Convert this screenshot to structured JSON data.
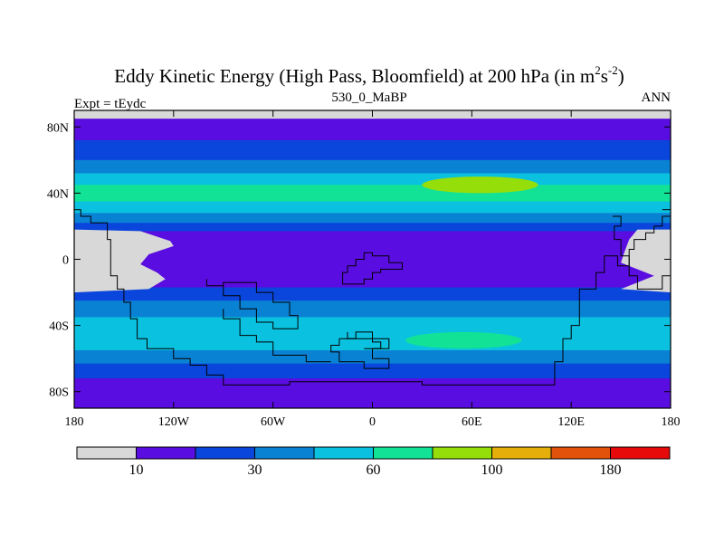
{
  "chart_data": {
    "type": "contour_map",
    "title": "Eddy Kinetic Energy (High Pass, Bloomfield) at 200 hPa (in m",
    "title_unit_sup1": "2",
    "title_unit_mid": "s",
    "title_unit_sup2": "-2",
    "title_close": ")",
    "subtitle": "530_0_MaBP",
    "left_label": "Expt = tEydc",
    "right_label": "ANN",
    "lon_range": [
      -180,
      180
    ],
    "lat_range": [
      -90,
      90
    ],
    "x_ticks": [
      {
        "value": -180,
        "label": "180"
      },
      {
        "value": -120,
        "label": "120W"
      },
      {
        "value": -60,
        "label": "60W"
      },
      {
        "value": 0,
        "label": "0"
      },
      {
        "value": 60,
        "label": "60E"
      },
      {
        "value": 120,
        "label": "120E"
      },
      {
        "value": 180,
        "label": "180"
      }
    ],
    "y_ticks": [
      {
        "value": 80,
        "label": "80N"
      },
      {
        "value": 40,
        "label": "40N"
      },
      {
        "value": 0,
        "label": "0"
      },
      {
        "value": -40,
        "label": "40S"
      },
      {
        "value": -80,
        "label": "80S"
      }
    ],
    "colorbar": {
      "colors": [
        "#d8d8d8",
        "#5a0de0",
        "#0a46dc",
        "#0a82d4",
        "#0ac2e0",
        "#12e296",
        "#96de0a",
        "#e6ae0a",
        "#e2520a",
        "#e60a0a"
      ],
      "labels": [
        {
          "boundary": 1,
          "label": "10"
        },
        {
          "boundary": 3,
          "label": "30"
        },
        {
          "boundary": 5,
          "label": "60"
        },
        {
          "boundary": 7,
          "label": "100"
        },
        {
          "boundary": 9,
          "label": "180"
        }
      ]
    },
    "field_bands": [
      {
        "lat_from": 90,
        "lat_to": 85,
        "color": "#d8d8d8"
      },
      {
        "lat_from": 85,
        "lat_to": 72,
        "color": "#5a0de0"
      },
      {
        "lat_from": 72,
        "lat_to": 60,
        "color": "#0a46dc"
      },
      {
        "lat_from": 60,
        "lat_to": 52,
        "color": "#0a82d4"
      },
      {
        "lat_from": 52,
        "lat_to": 45,
        "color": "#0ac2e0"
      },
      {
        "lat_from": 45,
        "lat_to": 35,
        "color": "#12e296"
      },
      {
        "lat_from": 35,
        "lat_to": 28,
        "color": "#0ac2e0"
      },
      {
        "lat_from": 28,
        "lat_to": 22,
        "color": "#0a82d4"
      },
      {
        "lat_from": 22,
        "lat_to": 17,
        "color": "#0a46dc"
      },
      {
        "lat_from": 17,
        "lat_to": -17,
        "color": "#5a0de0"
      },
      {
        "lat_from": -17,
        "lat_to": -25,
        "color": "#0a46dc"
      },
      {
        "lat_from": -25,
        "lat_to": -35,
        "color": "#0a82d4"
      },
      {
        "lat_from": -35,
        "lat_to": -55,
        "color": "#0ac2e0"
      },
      {
        "lat_from": -55,
        "lat_to": -63,
        "color": "#0a82d4"
      },
      {
        "lat_from": -63,
        "lat_to": -72,
        "color": "#0a46dc"
      },
      {
        "lat_from": -72,
        "lat_to": -90,
        "color": "#5a0de0"
      }
    ],
    "field_blobs": [
      {
        "lon": 65,
        "lat": 45,
        "half_lon": 35,
        "half_lat": 5,
        "color": "#96de0a"
      },
      {
        "lon": 55,
        "lat": -49,
        "half_lon": 35,
        "half_lat": 5,
        "color": "#12e296"
      }
    ],
    "low_value_regions": [
      {
        "name": "south-america-west",
        "color": "#d8d8d8",
        "outline": [
          [
            -180,
            18
          ],
          [
            -140,
            17
          ],
          [
            -122,
            11
          ],
          [
            -120,
            8
          ],
          [
            -135,
            3
          ],
          [
            -140,
            -3
          ],
          [
            -130,
            -8
          ],
          [
            -125,
            -12
          ],
          [
            -135,
            -18
          ],
          [
            -180,
            -20
          ]
        ]
      },
      {
        "name": "indonesia-east",
        "color": "#d8d8d8",
        "outline": [
          [
            180,
            18
          ],
          [
            160,
            18
          ],
          [
            155,
            12
          ],
          [
            152,
            4
          ],
          [
            150,
            -2
          ],
          [
            160,
            -6
          ],
          [
            170,
            -10
          ],
          [
            160,
            -14
          ],
          [
            150,
            -18
          ],
          [
            180,
            -20
          ]
        ]
      }
    ],
    "coastlines": [
      {
        "name": "west-continent",
        "points": [
          [
            -180,
            30
          ],
          [
            -176,
            30
          ],
          [
            -176,
            26
          ],
          [
            -170,
            26
          ],
          [
            -170,
            22
          ],
          [
            -160,
            22
          ],
          [
            -160,
            12
          ],
          [
            -158,
            12
          ],
          [
            -158,
            -10
          ],
          [
            -154,
            -10
          ],
          [
            -154,
            -18
          ],
          [
            -150,
            -18
          ],
          [
            -150,
            -26
          ],
          [
            -146,
            -26
          ],
          [
            -146,
            -36
          ],
          [
            -142,
            -36
          ],
          [
            -142,
            -48
          ],
          [
            -136,
            -48
          ],
          [
            -136,
            -54
          ],
          [
            -120,
            -54
          ],
          [
            -120,
            -60
          ],
          [
            -110,
            -60
          ],
          [
            -110,
            -64
          ],
          [
            -100,
            -64
          ],
          [
            -100,
            -70
          ],
          [
            -90,
            -70
          ],
          [
            -90,
            -76
          ],
          [
            -50,
            -76
          ],
          [
            -50,
            -74
          ],
          [
            30,
            -74
          ],
          [
            30,
            -76
          ],
          [
            110,
            -76
          ],
          [
            110,
            -62
          ],
          [
            115,
            -62
          ],
          [
            115,
            -48
          ],
          [
            120,
            -48
          ],
          [
            120,
            -40
          ],
          [
            125,
            -40
          ],
          [
            125,
            -18
          ],
          [
            135,
            -18
          ],
          [
            135,
            -8
          ],
          [
            140,
            -8
          ],
          [
            140,
            2
          ],
          [
            148,
            2
          ],
          [
            148,
            -4
          ],
          [
            155,
            -4
          ],
          [
            155,
            6
          ],
          [
            158,
            6
          ],
          [
            158,
            12
          ],
          [
            165,
            12
          ],
          [
            165,
            16
          ],
          [
            170,
            16
          ],
          [
            170,
            20
          ],
          [
            175,
            20
          ],
          [
            175,
            26
          ],
          [
            180,
            26
          ]
        ]
      },
      {
        "name": "east-peninsula",
        "points": [
          [
            145,
            26
          ],
          [
            150,
            26
          ],
          [
            150,
            20
          ],
          [
            146,
            20
          ],
          [
            146,
            12
          ],
          [
            150,
            12
          ],
          [
            150,
            2
          ],
          [
            155,
            2
          ],
          [
            155,
            -10
          ],
          [
            160,
            -10
          ],
          [
            160,
            -18
          ],
          [
            175,
            -18
          ],
          [
            175,
            -10
          ],
          [
            180,
            -10
          ]
        ]
      },
      {
        "name": "south-continent",
        "points": [
          [
            -100,
            -12
          ],
          [
            -100,
            -16
          ],
          [
            -90,
            -16
          ],
          [
            -90,
            -14
          ],
          [
            -70,
            -14
          ],
          [
            -70,
            -20
          ],
          [
            -60,
            -20
          ],
          [
            -60,
            -26
          ],
          [
            -50,
            -26
          ],
          [
            -50,
            -34
          ],
          [
            -45,
            -34
          ],
          [
            -45,
            -42
          ],
          [
            -60,
            -42
          ],
          [
            -60,
            -38
          ],
          [
            -70,
            -38
          ],
          [
            -70,
            -30
          ],
          [
            -80,
            -30
          ],
          [
            -80,
            -22
          ],
          [
            -90,
            -22
          ],
          [
            -90,
            -16
          ],
          [
            -100,
            -16
          ]
        ]
      },
      {
        "name": "south-lower",
        "points": [
          [
            -90,
            -30
          ],
          [
            -90,
            -36
          ],
          [
            -80,
            -36
          ],
          [
            -80,
            -46
          ],
          [
            -70,
            -46
          ],
          [
            -70,
            -50
          ],
          [
            -60,
            -50
          ],
          [
            -60,
            -58
          ],
          [
            -40,
            -58
          ],
          [
            -40,
            -62
          ],
          [
            -25,
            -62
          ]
        ]
      },
      {
        "name": "central-islands",
        "points": [
          [
            -15,
            -4
          ],
          [
            -10,
            -4
          ],
          [
            -10,
            0
          ],
          [
            -5,
            0
          ],
          [
            -5,
            4
          ],
          [
            0,
            4
          ],
          [
            0,
            2
          ],
          [
            10,
            2
          ],
          [
            10,
            -2
          ],
          [
            18,
            -2
          ],
          [
            18,
            -6
          ],
          [
            5,
            -6
          ],
          [
            5,
            -8
          ],
          [
            0,
            -8
          ],
          [
            0,
            -12
          ],
          [
            -5,
            -12
          ],
          [
            -5,
            -15
          ],
          [
            -18,
            -15
          ],
          [
            -18,
            -8
          ],
          [
            -15,
            -8
          ],
          [
            -15,
            -4
          ]
        ]
      },
      {
        "name": "south-island",
        "points": [
          [
            -20,
            -48
          ],
          [
            -20,
            -52
          ],
          [
            -25,
            -52
          ],
          [
            -25,
            -56
          ],
          [
            -20,
            -56
          ],
          [
            -20,
            -62
          ],
          [
            -5,
            -62
          ],
          [
            -5,
            -66
          ],
          [
            10,
            -66
          ],
          [
            10,
            -60
          ],
          [
            0,
            -60
          ],
          [
            0,
            -54
          ],
          [
            10,
            -54
          ],
          [
            10,
            -48
          ],
          [
            0,
            -48
          ],
          [
            0,
            -44
          ],
          [
            -10,
            -44
          ],
          [
            -10,
            -48
          ],
          [
            -20,
            -48
          ]
        ]
      },
      {
        "name": "south-island-2",
        "points": [
          [
            -15,
            -44
          ],
          [
            -15,
            -48
          ],
          [
            0,
            -48
          ],
          [
            0,
            -50
          ],
          [
            5,
            -50
          ],
          [
            5,
            -54
          ],
          [
            -5,
            -54
          ]
        ]
      },
      {
        "name": "eastern-edge",
        "points": [
          [
            175,
            30
          ],
          [
            180,
            30
          ]
        ]
      }
    ]
  }
}
